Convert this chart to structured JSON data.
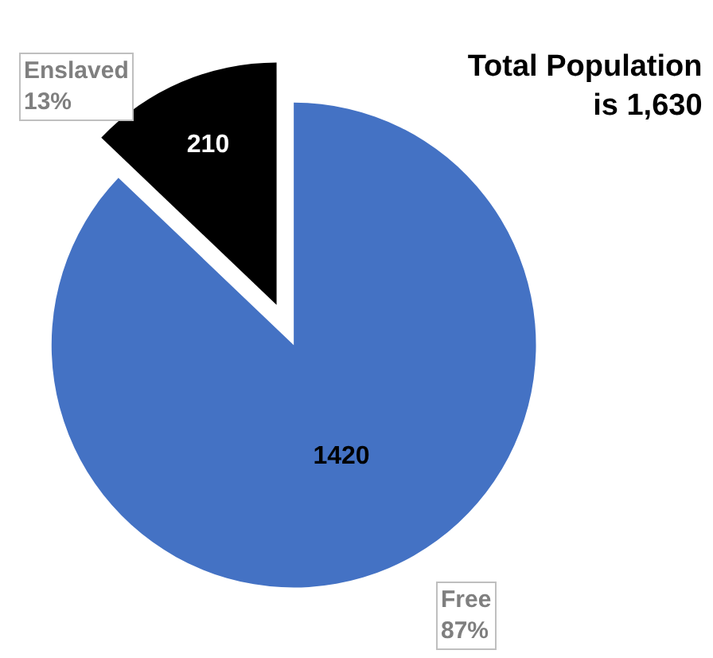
{
  "chart_data": {
    "type": "pie",
    "title": "Total Population\nis 1,630",
    "categories": [
      "Free",
      "Enslaved"
    ],
    "values": [
      1420,
      210
    ],
    "colors": [
      "#4472c4",
      "#000000"
    ],
    "data_labels": true,
    "annotations": [
      "87%",
      "13%"
    ],
    "legend": false
  }
}
